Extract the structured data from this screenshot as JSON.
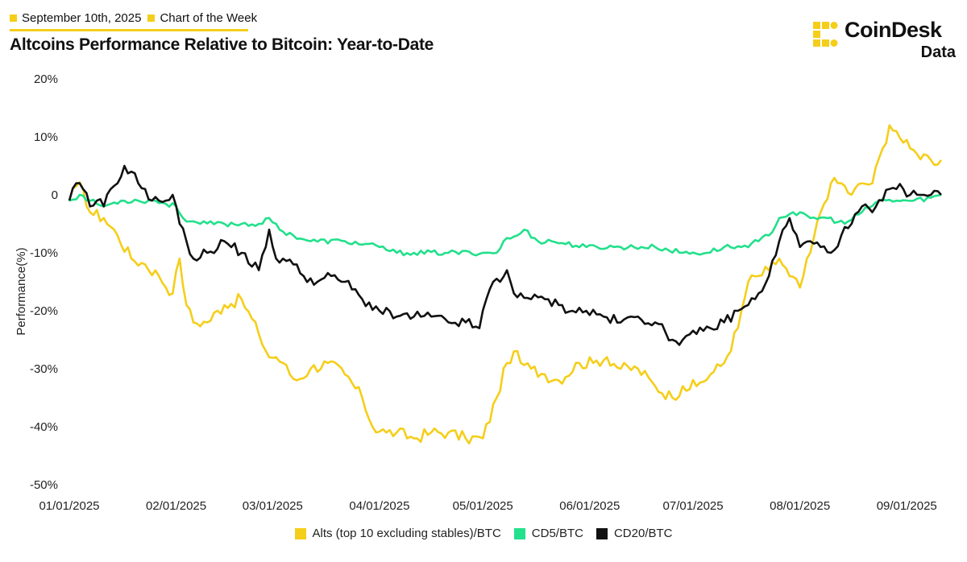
{
  "header": {
    "date": "September 10th, 2025",
    "series_name": "Chart of the Week",
    "title": "Altcoins Performance Relative to Bitcoin: Year-to-Date",
    "accent_color": "#F5CE1A"
  },
  "logo": {
    "brand": "CoinDesk",
    "sub": "Data"
  },
  "chart_data": {
    "type": "line",
    "title": "Altcoins Performance Relative to Bitcoin: Year-to-Date",
    "xlabel": "",
    "ylabel": "Performance(%)",
    "ylim": [
      -50,
      20
    ],
    "yticks": [
      20,
      10,
      0,
      -10,
      -20,
      -30,
      -40,
      -50
    ],
    "ytick_labels": [
      "20%",
      "10%",
      "0",
      "-10%",
      "-20%",
      "-30%",
      "-40%",
      "-50%"
    ],
    "xlim": [
      0,
      253
    ],
    "xticks": [
      0,
      31,
      59,
      90,
      120,
      151,
      181,
      212,
      243
    ],
    "xtick_labels": [
      "01/01/2025",
      "02/01/2025",
      "03/01/2025",
      "04/01/2025",
      "05/01/2025",
      "06/01/2025",
      "07/01/2025",
      "08/01/2025",
      "09/01/2025"
    ],
    "grid": false,
    "legend_position": "bottom-center",
    "series": [
      {
        "name": "Alts (top 10 excluding stables)/BTC",
        "color": "#F5CE1A",
        "x": [
          0,
          2,
          4,
          6,
          10,
          14,
          18,
          22,
          26,
          30,
          32,
          34,
          36,
          40,
          45,
          50,
          55,
          58,
          60,
          62,
          64,
          66,
          70,
          75,
          80,
          85,
          88,
          92,
          95,
          100,
          105,
          110,
          115,
          120,
          124,
          127,
          129,
          131,
          134,
          138,
          142,
          148,
          152,
          156,
          160,
          165,
          170,
          175,
          178,
          182,
          186,
          190,
          194,
          197,
          200,
          203,
          206,
          209,
          212,
          215,
          218,
          221,
          224,
          227,
          230,
          233,
          236,
          238,
          240,
          242,
          244,
          246,
          248,
          250,
          253
        ],
        "values": [
          -1,
          1.5,
          1,
          -3,
          -4,
          -7,
          -11,
          -12,
          -14,
          -17,
          -11,
          -19,
          -22,
          -22,
          -19,
          -18,
          -24,
          -28,
          -28,
          -29,
          -31,
          -32,
          -30,
          -29,
          -31,
          -35,
          -40,
          -41,
          -41,
          -42,
          -41,
          -41,
          -42,
          -42,
          -35,
          -29,
          -27,
          -29,
          -30,
          -31,
          -32,
          -29,
          -29,
          -28,
          -30,
          -30,
          -33,
          -35,
          -33,
          -33,
          -31,
          -29,
          -23,
          -15,
          -14,
          -13,
          -11,
          -14,
          -16,
          -10,
          -3,
          2,
          2,
          0,
          2,
          2,
          8,
          12,
          11,
          9,
          8,
          7,
          7,
          6,
          6
        ]
      },
      {
        "name": "CD5/BTC",
        "color": "#22E08B",
        "x": [
          0,
          3,
          6,
          10,
          15,
          20,
          25,
          31,
          33,
          38,
          45,
          50,
          56,
          58,
          61,
          65,
          70,
          80,
          90,
          95,
          100,
          110,
          120,
          124,
          126,
          130,
          132,
          136,
          140,
          150,
          160,
          170,
          178,
          185,
          190,
          195,
          200,
          203,
          206,
          210,
          215,
          220,
          225,
          230,
          235,
          240,
          245,
          250,
          253
        ],
        "values": [
          -1,
          0,
          -1,
          -2,
          -1,
          -1,
          -1,
          -2,
          -4,
          -5,
          -5,
          -5,
          -5,
          -4,
          -6,
          -7,
          -8,
          -8,
          -9,
          -10,
          -10,
          -10,
          -10,
          -10,
          -8,
          -7,
          -6,
          -8,
          -8,
          -9,
          -9,
          -9,
          -10,
          -10,
          -9,
          -9,
          -8,
          -7,
          -4,
          -3,
          -4,
          -4,
          -5,
          -3,
          -1,
          -1,
          -1,
          -0.5,
          0
        ]
      },
      {
        "name": "CD20/BTC",
        "color": "#111111",
        "x": [
          0,
          2,
          4,
          6,
          8,
          10,
          12,
          14,
          16,
          18,
          20,
          22,
          24,
          26,
          28,
          30,
          32,
          34,
          36,
          40,
          45,
          50,
          55,
          57,
          58,
          60,
          62,
          65,
          68,
          72,
          76,
          80,
          85,
          90,
          95,
          100,
          105,
          110,
          115,
          119,
          121,
          123,
          125,
          127,
          129,
          131,
          134,
          138,
          142,
          146,
          150,
          155,
          160,
          165,
          170,
          175,
          178,
          182,
          186,
          190,
          194,
          197,
          200,
          203,
          206,
          209,
          212,
          215,
          218,
          221,
          224,
          227,
          230,
          233,
          236,
          238,
          240,
          242,
          244,
          246,
          248,
          250,
          253
        ],
        "values": [
          -1,
          2,
          1,
          -2,
          -1,
          -2,
          1,
          2,
          5,
          4,
          2,
          1,
          -1,
          -1,
          -1,
          0,
          -5,
          -8,
          -11,
          -10,
          -8,
          -10,
          -13,
          -9,
          -6,
          -11,
          -11,
          -12,
          -14,
          -15,
          -14,
          -15,
          -18,
          -20,
          -21,
          -21,
          -21,
          -22,
          -22,
          -23,
          -18,
          -15,
          -15,
          -13,
          -17,
          -17,
          -18,
          -18,
          -19,
          -20,
          -20,
          -21,
          -22,
          -21,
          -22,
          -25,
          -25,
          -24,
          -23,
          -22,
          -20,
          -19,
          -17,
          -14,
          -8,
          -4,
          -9,
          -8,
          -9,
          -10,
          -7,
          -5,
          -2,
          -3,
          -1,
          1,
          1,
          1,
          0,
          0,
          0,
          0,
          0
        ]
      }
    ]
  }
}
